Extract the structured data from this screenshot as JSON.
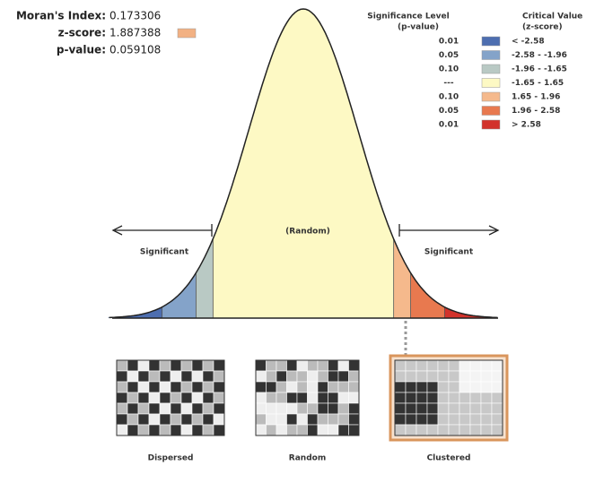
{
  "stats": [
    {
      "label": "Moran's Index:",
      "value": "0.173306"
    },
    {
      "label": "z-score:",
      "value": "1.887388",
      "color": "#f2b183"
    },
    {
      "label": "p-value:",
      "value": "0.059108"
    }
  ],
  "legend": {
    "p_header": "Significance Level",
    "p_sub": "(p-value)",
    "z_header": "Critical Value",
    "z_sub": "(z-score)",
    "rows": [
      {
        "p": "0.01",
        "z": "< -2.58",
        "color": "#4d6eb0"
      },
      {
        "p": "0.05",
        "z": "-2.58 - -1.96",
        "color": "#84a3c9"
      },
      {
        "p": "0.10",
        "z": "-1.96 - -1.65",
        "color": "#b9c9c4"
      },
      {
        "p": "---",
        "z": "-1.65 - 1.65",
        "color": "#fdf9c4"
      },
      {
        "p": "0.10",
        "z": "1.65 - 1.96",
        "color": "#f5b98c"
      },
      {
        "p": "0.05",
        "z": "1.96 - 2.58",
        "color": "#e8794f"
      },
      {
        "p": "0.01",
        "z": "> 2.58",
        "color": "#d2322b"
      }
    ]
  },
  "curve": {
    "left": "Significant",
    "center": "(Random)",
    "right": "Significant"
  },
  "maps": [
    {
      "label": "Dispersed"
    },
    {
      "label": "Random"
    },
    {
      "label": "Clustered"
    }
  ]
}
